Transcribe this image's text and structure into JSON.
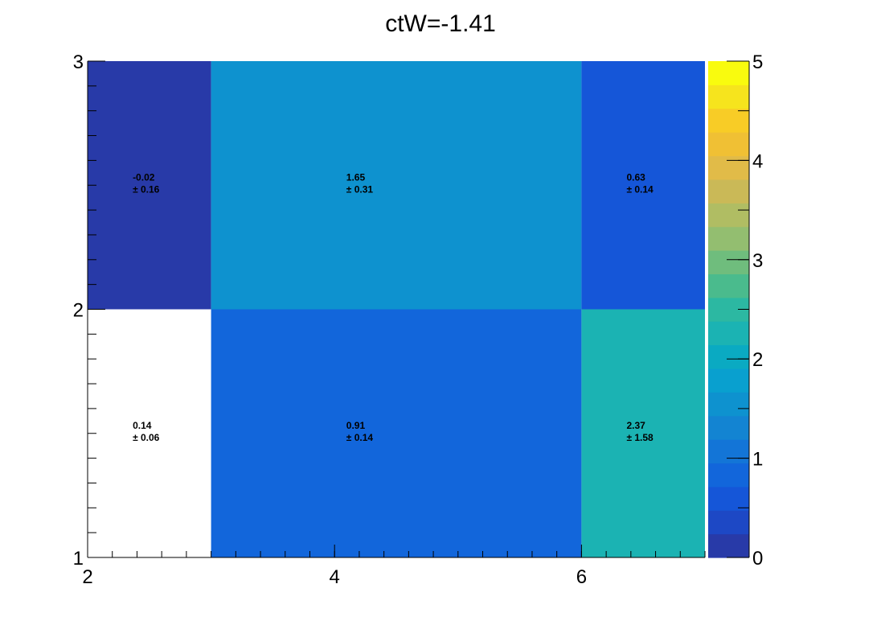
{
  "chart_data": {
    "type": "heatmap",
    "title": "ctW=-1.41",
    "xlabel": "",
    "ylabel": "",
    "x_edges": [
      2,
      3,
      6,
      7
    ],
    "y_edges": [
      1,
      2,
      3
    ],
    "xlim": [
      2,
      7
    ],
    "ylim": [
      1,
      3
    ],
    "x_ticks": [
      "2",
      "4",
      "6"
    ],
    "y_ticks": [
      "1",
      "2",
      "3"
    ],
    "zlim": [
      0,
      5
    ],
    "z_ticks": [
      "0",
      "1",
      "2",
      "3",
      "4",
      "5"
    ],
    "cells": [
      {
        "x": [
          2,
          3
        ],
        "y": [
          2,
          3
        ],
        "value": -0.02,
        "error": 0.16,
        "label": "-0.02",
        "error_label": "± 0.16"
      },
      {
        "x": [
          3,
          6
        ],
        "y": [
          2,
          3
        ],
        "value": 1.65,
        "error": 0.31,
        "label": "1.65",
        "error_label": "± 0.31"
      },
      {
        "x": [
          6,
          7
        ],
        "y": [
          2,
          3
        ],
        "value": 0.63,
        "error": 0.14,
        "label": "0.63",
        "error_label": "± 0.14"
      },
      {
        "x": [
          2,
          3
        ],
        "y": [
          1,
          2
        ],
        "value": 0.14,
        "error": 0.06,
        "label": "0.14",
        "error_label": "± 0.06",
        "empty_fill": true
      },
      {
        "x": [
          3,
          6
        ],
        "y": [
          1,
          2
        ],
        "value": 0.91,
        "error": 0.14,
        "label": "0.91",
        "error_label": "± 0.14"
      },
      {
        "x": [
          6,
          7
        ],
        "y": [
          1,
          2
        ],
        "value": 2.37,
        "error": 1.58,
        "label": "2.37",
        "error_label": "± 1.58"
      }
    ],
    "palette": [
      "#283aa8",
      "#1d48c5",
      "#1556d8",
      "#1266db",
      "#1375d7",
      "#1384d2",
      "#0e92cf",
      "#09a0cf",
      "#0aaac2",
      "#1bb3b3",
      "#2cb8a2",
      "#4abb8d",
      "#6fbd7d",
      "#93be70",
      "#b0bd63",
      "#cab957",
      "#e1bb48",
      "#f0c034",
      "#f8cc26",
      "#f6e41d",
      "#f9fb0e"
    ]
  }
}
